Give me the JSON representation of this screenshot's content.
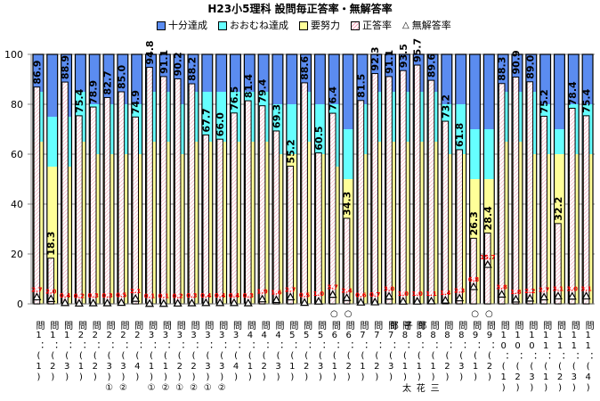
{
  "chart_data": {
    "type": "bar",
    "title": "H23小5理科 設問毎正答率・無解答率",
    "legend": [
      "十分達成",
      "おおむね達成",
      "要努力",
      "正答率",
      "無解答率"
    ],
    "legend_position": "top",
    "ylim": [
      0,
      100
    ],
    "yticks": [
      "0",
      "20",
      "40",
      "60",
      "80",
      "100"
    ],
    "grid": true,
    "colors": {
      "十分達成": "#5b8cf0",
      "おおむね達成": "#66ffff",
      "要努力": "#ffff99",
      "正答率": "#f4a0b4",
      "無解答率": "#ff0000"
    },
    "categories": [
      {
        "mark": "",
        "label": "問1：(1)"
      },
      {
        "mark": "",
        "label": "問1：(2)"
      },
      {
        "mark": "",
        "label": "問1：(3)"
      },
      {
        "mark": "",
        "label": "問2：(1)"
      },
      {
        "mark": "",
        "label": "問2：(2)"
      },
      {
        "mark": "",
        "label": "問2：(3)①"
      },
      {
        "mark": "",
        "label": "問2：(3)②"
      },
      {
        "mark": "",
        "label": "問2：(4)"
      },
      {
        "mark": "",
        "label": "問3：(1)①"
      },
      {
        "mark": "",
        "label": "問3：(1)②"
      },
      {
        "mark": "",
        "label": "問3：(2)①"
      },
      {
        "mark": "",
        "label": "問3：(2)②"
      },
      {
        "mark": "",
        "label": "問3：(3)①"
      },
      {
        "mark": "",
        "label": "問3：(3)②"
      },
      {
        "mark": "",
        "label": "問3：(4)"
      },
      {
        "mark": "",
        "label": "問4：(1)"
      },
      {
        "mark": "",
        "label": "問4：(2)"
      },
      {
        "mark": "",
        "label": "問4：(3)"
      },
      {
        "mark": "",
        "label": "問5：(1)"
      },
      {
        "mark": "",
        "label": "問5：(2)"
      },
      {
        "mark": "",
        "label": "問5：(3)"
      },
      {
        "mark": "○",
        "label": "問6：(1)"
      },
      {
        "mark": "○",
        "label": "問6：(2)"
      },
      {
        "mark": "",
        "label": "問7：(1)"
      },
      {
        "mark": "",
        "label": "問7：(2)"
      },
      {
        "mark": "",
        "label": "問7：(3)"
      },
      {
        "mark": "",
        "label": "問8：(1)太郎"
      },
      {
        "mark": "",
        "label": "問8：(1)花子"
      },
      {
        "mark": "",
        "label": "問8：(1)三郎"
      },
      {
        "mark": "",
        "label": "問8：(2)"
      },
      {
        "mark": "",
        "label": "問8：(3)"
      },
      {
        "mark": "○",
        "label": "問9：(1)"
      },
      {
        "mark": "○",
        "label": "問9：(2)"
      },
      {
        "mark": "",
        "label": "問10：(1)"
      },
      {
        "mark": "",
        "label": "問10：(2)"
      },
      {
        "mark": "",
        "label": "問10：(3)"
      },
      {
        "mark": "",
        "label": "問11：(1)"
      },
      {
        "mark": "",
        "label": "問11：(2)"
      },
      {
        "mark": "",
        "label": "問11：(3)"
      },
      {
        "mark": "",
        "label": "問11：(4)"
      }
    ],
    "correct_rate": [
      86.9,
      18.3,
      88.9,
      75.4,
      78.9,
      82.7,
      85.0,
      74.9,
      94.8,
      91.1,
      90.2,
      88.2,
      67.7,
      66.0,
      76.5,
      81.4,
      79.4,
      69.3,
      55.2,
      88.6,
      60.5,
      76.4,
      34.3,
      81.5,
      92.3,
      91.1,
      93.5,
      95.7,
      89.6,
      73.2,
      61.8,
      26.3,
      28.4,
      88.3,
      90.9,
      89.0,
      75.2,
      32.2,
      78.4,
      75.4
    ],
    "no_answer_rate": [
      2.7,
      2.0,
      0.4,
      0.2,
      0.3,
      0.3,
      0.5,
      2.1,
      0.1,
      0.1,
      0.2,
      0.3,
      0.4,
      0.4,
      0.4,
      0.3,
      1.9,
      1.6,
      2.7,
      0.5,
      1.0,
      3.7,
      2.4,
      0.6,
      0.7,
      3.0,
      1.0,
      1.0,
      1.1,
      1.4,
      2.3,
      6.8,
      15.7,
      3.8,
      1.8,
      2.2,
      2.7,
      3.1,
      3.0,
      3.1
    ],
    "threshold_sufficient": [
      85,
      75,
      75,
      85,
      80,
      80,
      80,
      80,
      85,
      85,
      80,
      85,
      85,
      85,
      85,
      85,
      85,
      80,
      80,
      85,
      80,
      80,
      70,
      80,
      85,
      85,
      85,
      85,
      85,
      80,
      80,
      70,
      70,
      85,
      85,
      85,
      80,
      70,
      80,
      80
    ],
    "threshold_generally": [
      65,
      55,
      55,
      65,
      60,
      60,
      60,
      60,
      65,
      65,
      60,
      65,
      65,
      65,
      65,
      65,
      65,
      60,
      60,
      65,
      60,
      55,
      50,
      60,
      65,
      65,
      65,
      65,
      65,
      60,
      60,
      50,
      50,
      65,
      65,
      60,
      60,
      60,
      60,
      60
    ]
  }
}
